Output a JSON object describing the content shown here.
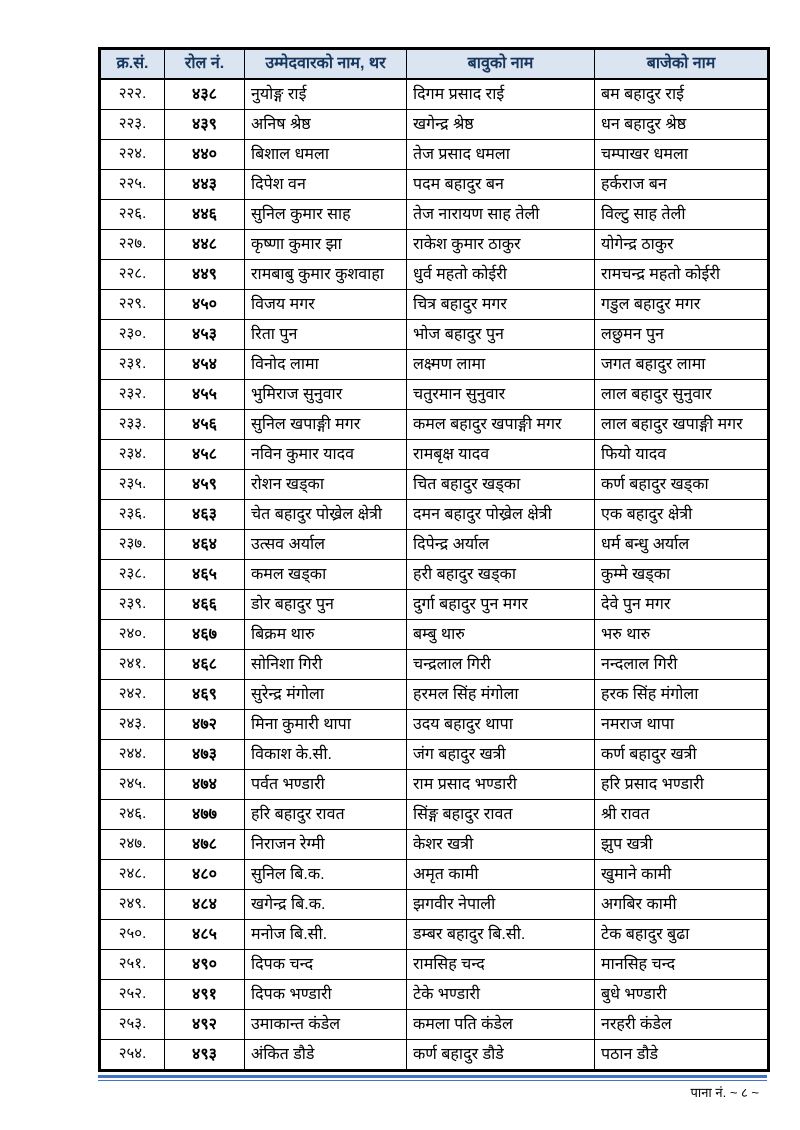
{
  "table": {
    "headers": [
      "क्र.सं.",
      "रोल नं.",
      "उम्मेदवारको नाम, थर",
      "बावुको नाम",
      "बाजेको नाम"
    ],
    "rows": [
      [
        "२२२.",
        "४३८",
        "नुयोङ्ग राई",
        "दिगम प्रसाद राई",
        "बम बहादुर राई"
      ],
      [
        "२२३.",
        "४३९",
        "अनिष श्रेष्ठ",
        "खगेन्द्र श्रेष्ठ",
        "धन बहादुर श्रेष्ठ"
      ],
      [
        "२२४.",
        "४४०",
        "बिशाल धमला",
        "तेज प्रसाद धमला",
        "चम्पाखर धमला"
      ],
      [
        "२२५.",
        "४४३",
        "दिपेश वन",
        "पदम बहादुर बन",
        "हर्कराज बन"
      ],
      [
        "२२६.",
        "४४६",
        "सुनिल कुमार साह",
        "तेज नारायण साह तेली",
        "विल्टु साह तेली"
      ],
      [
        "२२७.",
        "४४८",
        "कृष्णा कुमार झा",
        "राकेश कुमार ठाकुर",
        "योगेन्द्र ठाकुर"
      ],
      [
        "२२८.",
        "४४९",
        "रामबाबु कुमार कुशवाहा",
        "धुर्व महतो कोईरी",
        "रामचन्द्र महतो कोईरी"
      ],
      [
        "२२९.",
        "४५०",
        "विजय मगर",
        "चित्र बहादुर मगर",
        "गडुल बहादुर मगर"
      ],
      [
        "२३०.",
        "४५३",
        "रिता पुन",
        "भोज बहादुर पुन",
        "लछुमन पुन"
      ],
      [
        "२३१.",
        "४५४",
        "विनोद लामा",
        "लक्ष्मण लामा",
        "जगत बहादुर लामा"
      ],
      [
        "२३२.",
        "४५५",
        "भुमिराज सुनुवार",
        "चतुरमान सुनुवार",
        "लाल बहादुर सुनुवार"
      ],
      [
        "२३३.",
        "४५६",
        "सुनिल खपाङ्गी मगर",
        "कमल बहादुर खपाङ्गी मगर",
        "लाल बहादुर खपाङ्गी मगर"
      ],
      [
        "२३४.",
        "४५८",
        "नविन कुमार यादव",
        "रामबृक्ष यादव",
        "फियो यादव"
      ],
      [
        "२३५.",
        "४५९",
        "रोशन खड्का",
        "चित बहादुर खड्का",
        "कर्ण बहादुर खड्का"
      ],
      [
        "२३६.",
        "४६३",
        "चेत बहादुर पोख्रेल क्षेत्री",
        "दमन बहादुर पोख्रेल क्षेत्री",
        "एक बहादुर क्षेत्री"
      ],
      [
        "२३७.",
        "४६४",
        "उत्सव अर्याल",
        "दिपेन्द्र अर्याल",
        "धर्म बन्धु अर्याल"
      ],
      [
        "२३८.",
        "४६५",
        "कमल खड्का",
        "हरी बहादुर खड्का",
        "कुम्मे खड्का"
      ],
      [
        "२३९.",
        "४६६",
        "डोर बहादुर पुन",
        "दुर्गा बहादुर पुन मगर",
        "देवे पुन मगर"
      ],
      [
        "२४०.",
        "४६७",
        "बिक्रम थारु",
        "बम्बु थारु",
        "भरु थारु"
      ],
      [
        "२४१.",
        "४६८",
        "सोनिशा गिरी",
        "चन्द्रलाल गिरी",
        "नन्दलाल गिरी"
      ],
      [
        "२४२.",
        "४६९",
        "सुरेन्द्र मंगोला",
        "हरमल सिंह मंगोला",
        "हरक सिंह मंगोला"
      ],
      [
        "२४३.",
        "४७२",
        "मिना कुमारी थापा",
        "उदय बहादुर थापा",
        "नमराज थापा"
      ],
      [
        "२४४.",
        "४७३",
        "विकाश के.सी.",
        "जंग बहादुर खत्री",
        "कर्ण बहादुर खत्री"
      ],
      [
        "२४५.",
        "४७४",
        "पर्वत भण्डारी",
        "राम प्रसाद भण्डारी",
        "हरि प्रसाद भण्डारी"
      ],
      [
        "२४६.",
        "४७७",
        "हरि बहादुर रावत",
        "सिंङ्ग बहादुर रावत",
        "श्री रावत"
      ],
      [
        "२४७.",
        "४७८",
        "निराजन रेग्मी",
        "केशर खत्री",
        "झुप खत्री"
      ],
      [
        "२४८.",
        "४८०",
        "सुनिल बि.क.",
        "अमृत कामी",
        "खुमाने कामी"
      ],
      [
        "२४९.",
        "४८४",
        "खगेन्द्र बि.क.",
        "झगवीर नेपाली",
        "अगबिर कामी"
      ],
      [
        "२५०.",
        "४८५",
        "मनोज बि.सी.",
        "डम्बर बहादुर बि.सी.",
        "टेक बहादुर बुढा"
      ],
      [
        "२५१.",
        "४९०",
        "दिपक चन्द",
        "रामसिह चन्द",
        "मानसिह चन्द"
      ],
      [
        "२५२.",
        "४९१",
        "दिपक भण्डारी",
        "टेके भण्डारी",
        "बुधे भण्डारी"
      ],
      [
        "२५३.",
        "४९२",
        "उमाकान्त कंडेल",
        "कमला पति कंडेल",
        "नरहरी कंडेल"
      ],
      [
        "२५४.",
        "४९३",
        "अंकित डौडे",
        "कर्ण बहादुर डौडे",
        "पठान डौडे"
      ]
    ]
  },
  "footer": {
    "page_label": "पाना नं. ~ ८ ~"
  },
  "colors": {
    "header_bg": "#dbe5f1",
    "header_text": "#17365d",
    "border": "#000000",
    "rule_blue": "#4472c4"
  }
}
